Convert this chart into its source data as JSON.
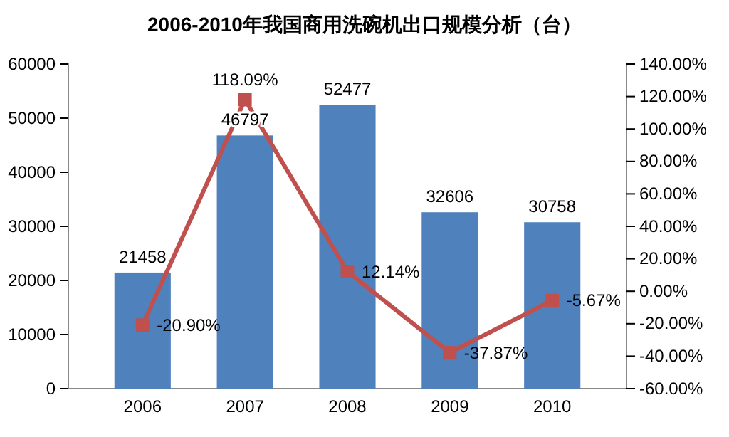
{
  "chart_data": {
    "type": "bar",
    "title": "2006-2010年我国商用洗碗机出口规模分析（台）",
    "categories": [
      "2006",
      "2007",
      "2008",
      "2009",
      "2010"
    ],
    "series": [
      {
        "color": "#4f81bd",
        "values": [
          21458,
          46797,
          52477,
          32606,
          30758
        ],
        "value_labels": [
          "21458",
          "46797",
          "52477",
          "32606",
          "30758"
        ]
      },
      {
        "type": "line",
        "axis": "y2",
        "color": "#c0504d",
        "values": [
          -20.9,
          118.09,
          12.14,
          -37.87,
          -5.67
        ],
        "value_labels": [
          "-20.90%",
          "118.09%",
          "12.14%",
          "-37.87%",
          "-5.67%"
        ]
      }
    ],
    "ylim": [
      0,
      60000
    ],
    "yticks": [
      0,
      10000,
      20000,
      30000,
      40000,
      50000,
      60000
    ],
    "y2lim": [
      -60,
      140
    ],
    "y2ticks": [
      {
        "value": -60,
        "label": "-60.00%"
      },
      {
        "value": -40,
        "label": "-40.00%"
      },
      {
        "value": -20,
        "label": "-20.00%"
      },
      {
        "value": 0,
        "label": "0.00%"
      },
      {
        "value": 20,
        "label": "20.00%"
      },
      {
        "value": 40,
        "label": "40.00%"
      },
      {
        "value": 60,
        "label": "60.00%"
      },
      {
        "value": 80,
        "label": "80.00%"
      },
      {
        "value": 100,
        "label": "100.00%"
      },
      {
        "value": 120,
        "label": "120.00%"
      },
      {
        "value": 140,
        "label": "140.00%"
      }
    ],
    "marker": "square",
    "grid": false
  }
}
